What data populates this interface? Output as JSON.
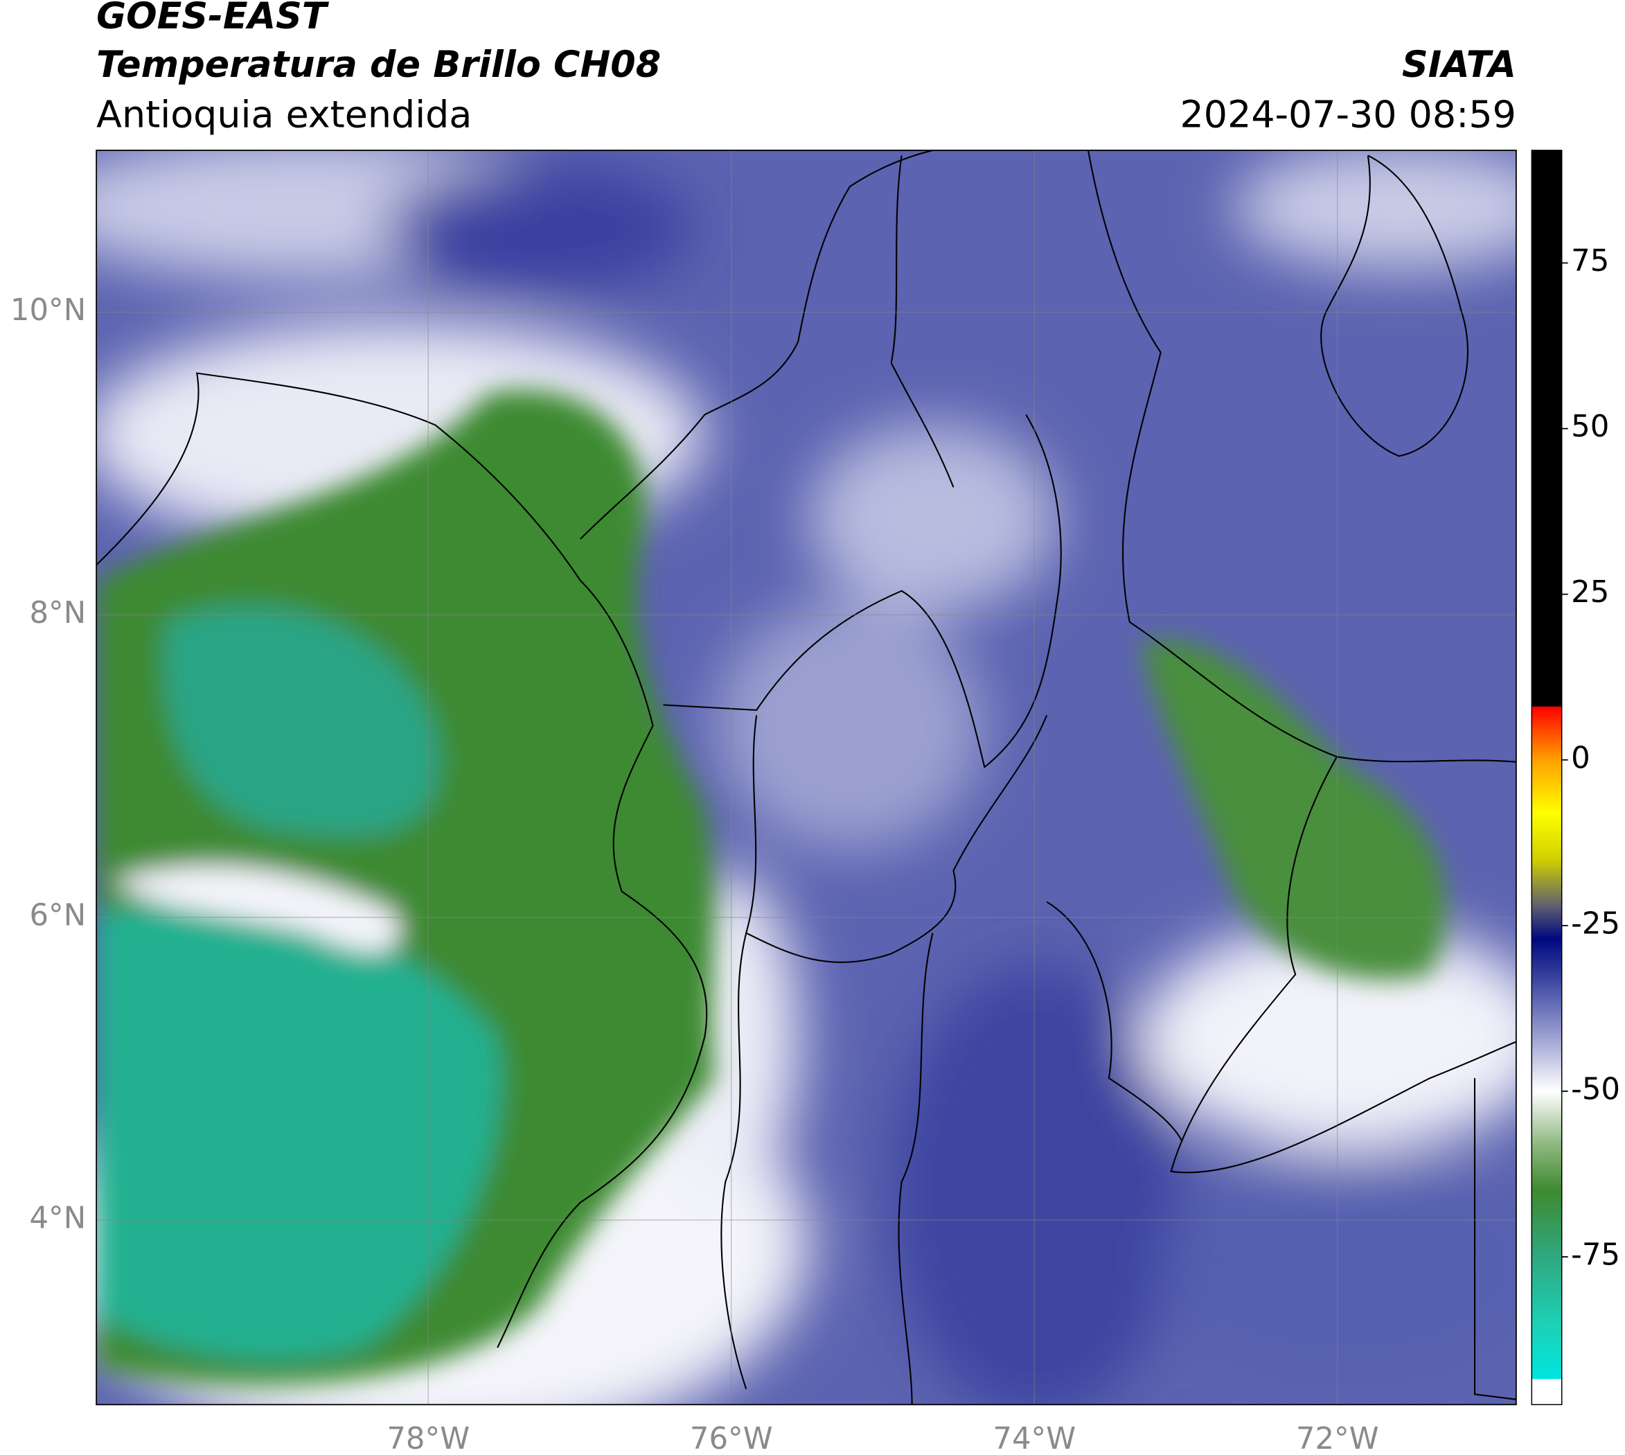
{
  "chart_data": {
    "type": "map",
    "title": "GOES-EAST",
    "subtitle": "Temperatura de Brillo CH08",
    "region": "Antioquia extendida",
    "source": "SIATA",
    "timestamp": "2024-07-30 08:59",
    "xlim": [
      -80.19,
      -70.82
    ],
    "ylim": [
      2.78,
      11.07
    ],
    "xticks": [
      {
        "value": -78,
        "label": "78°W"
      },
      {
        "value": -76,
        "label": "76°W"
      },
      {
        "value": -74,
        "label": "74°W"
      },
      {
        "value": -72,
        "label": "72°W"
      }
    ],
    "yticks": [
      {
        "value": 10,
        "label": "10°N"
      },
      {
        "value": 8,
        "label": "8°N"
      },
      {
        "value": 6,
        "label": "6°N"
      },
      {
        "value": 4,
        "label": "4°N"
      }
    ],
    "grid": true,
    "colorbar_lim": [
      -97.3,
      92
    ],
    "colorbar_ticks": [
      75,
      50,
      25,
      0,
      -25,
      -50,
      -75
    ],
    "colormap": [
      {
        "value": -97.3,
        "color": "#ffffff"
      },
      {
        "value": -93.5,
        "color": "#ffffff"
      },
      {
        "value": -93.4,
        "color": "#00e5e0"
      },
      {
        "value": -85,
        "color": "#1ed0b5"
      },
      {
        "value": -75,
        "color": "#2fa880"
      },
      {
        "value": -65,
        "color": "#3e8a30"
      },
      {
        "value": -58,
        "color": "#8fb880"
      },
      {
        "value": -50,
        "color": "#ffffff"
      },
      {
        "value": -42,
        "color": "#9ea3d2"
      },
      {
        "value": -33,
        "color": "#3a45a0"
      },
      {
        "value": -27,
        "color": "#000880"
      },
      {
        "value": -22,
        "color": "#606070"
      },
      {
        "value": -15,
        "color": "#d0d000"
      },
      {
        "value": -8,
        "color": "#ffff00"
      },
      {
        "value": 0,
        "color": "#ffa000"
      },
      {
        "value": 8,
        "color": "#ff0000"
      },
      {
        "value": 8.1,
        "color": "#000000"
      },
      {
        "value": 92,
        "color": "#000000"
      }
    ]
  }
}
